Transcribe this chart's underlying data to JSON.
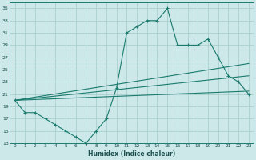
{
  "xlabel": "Humidex (Indice chaleur)",
  "bg_color": "#cce8e8",
  "grid_color": "#aad0d0",
  "line_color": "#1a7a6e",
  "xlim": [
    -0.5,
    23.5
  ],
  "ylim": [
    13,
    36
  ],
  "yticks": [
    13,
    15,
    17,
    19,
    21,
    23,
    25,
    27,
    29,
    31,
    33,
    35
  ],
  "xticks": [
    0,
    1,
    2,
    3,
    4,
    5,
    6,
    7,
    8,
    9,
    10,
    11,
    12,
    13,
    14,
    15,
    16,
    17,
    18,
    19,
    20,
    21,
    22,
    23
  ],
  "line1_x": [
    0,
    1,
    2,
    3,
    4,
    5,
    6,
    7,
    8,
    9,
    10,
    11,
    12,
    13,
    14,
    15,
    16,
    17,
    18,
    19,
    20,
    21,
    22,
    23
  ],
  "line1_y": [
    20,
    18,
    18,
    17,
    16,
    15,
    14,
    13,
    15,
    17,
    22,
    31,
    32,
    33,
    33,
    35,
    29,
    29,
    29,
    30,
    27,
    24,
    23,
    21
  ],
  "line2_x": [
    0,
    23
  ],
  "line2_y": [
    20,
    21.5
  ],
  "line3_x": [
    0,
    23
  ],
  "line3_y": [
    20,
    26
  ],
  "line4_x": [
    0,
    23
  ],
  "line4_y": [
    20,
    24
  ]
}
